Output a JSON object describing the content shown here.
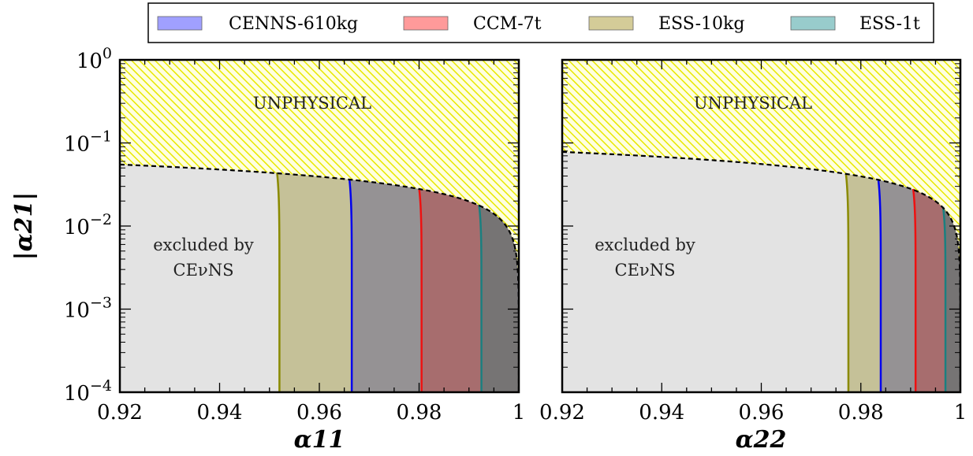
{
  "colors": {
    "cenns": "#0000ee",
    "ccm": "#ee1111",
    "ess10": "#8a8a00",
    "ess1t": "#1a8080",
    "cenns_fill": "rgba(60,60,140,0.35)",
    "ccm_fill": "rgba(200,40,40,0.35)",
    "ess10_fill": "rgba(160,150,60,0.45)",
    "ess1t_fill": "rgba(30,130,130,0.35)",
    "excluded_fill": "#e3e3e3",
    "unphysical": "#f0f000"
  },
  "legend": {
    "entries": [
      {
        "label": "CENNS-610kg",
        "swatch": "#a0a0ff"
      },
      {
        "label": "CCM-7t",
        "swatch": "#ff9a9a"
      },
      {
        "label": "ESS-10kg",
        "swatch": "#d4cc98"
      },
      {
        "label": "ESS-1t",
        "swatch": "#98cccc"
      }
    ]
  },
  "chart_data": [
    {
      "type": "area",
      "xlabel": "α11",
      "ylabel": "|α21|",
      "xlim": [
        0.92,
        1.0
      ],
      "ylim": [
        0.0001,
        1
      ],
      "yscale": "log",
      "xticks": [
        "0.92",
        "0.94",
        "0.96",
        "0.98",
        "1"
      ],
      "yticks": [
        "10^-4",
        "10^-3",
        "10^-2",
        "10^-1",
        "10^0"
      ],
      "annotations": [
        "UNPHYSICAL",
        "excluded by",
        "CEνNS"
      ],
      "unitarity_boundary_y_at_xmin": 0.055,
      "series": [
        {
          "name": "ESS-10kg",
          "bound_x": 0.952,
          "top_y": 0.044
        },
        {
          "name": "CENNS-610kg",
          "bound_x": 0.9665,
          "top_y": 0.037
        },
        {
          "name": "CCM-7t",
          "bound_x": 0.9805,
          "top_y": 0.028
        },
        {
          "name": "ESS-1t",
          "bound_x": 0.9925,
          "top_y": 0.018
        }
      ]
    },
    {
      "type": "area",
      "xlabel": "α22",
      "ylabel": "",
      "xlim": [
        0.92,
        1.0
      ],
      "ylim": [
        0.0001,
        1
      ],
      "yscale": "log",
      "xticks": [
        "0.92",
        "0.94",
        "0.96",
        "0.98",
        "1"
      ],
      "yticks": [],
      "annotations": [
        "UNPHYSICAL",
        "excluded by",
        "CEνNS"
      ],
      "unitarity_boundary_y_at_xmin": 0.078,
      "series": [
        {
          "name": "ESS-10kg",
          "bound_x": 0.9775,
          "top_y": 0.042
        },
        {
          "name": "CENNS-610kg",
          "bound_x": 0.984,
          "top_y": 0.036
        },
        {
          "name": "CCM-7t",
          "bound_x": 0.991,
          "top_y": 0.028
        },
        {
          "name": "ESS-1t",
          "bound_x": 0.997,
          "top_y": 0.017
        }
      ]
    }
  ]
}
